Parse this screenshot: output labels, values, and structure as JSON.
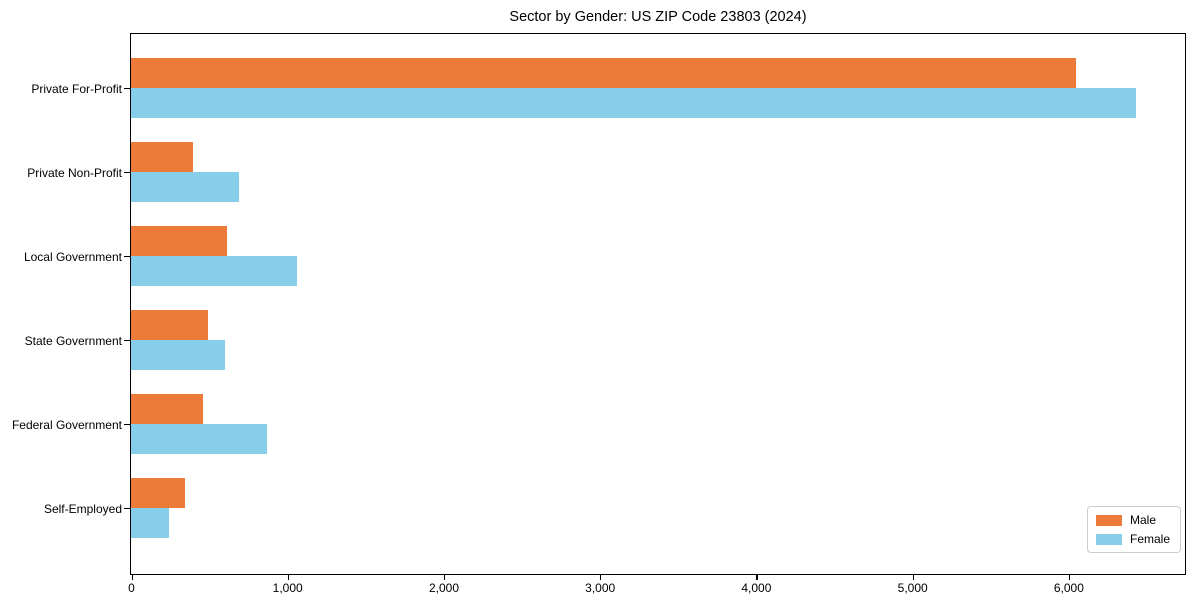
{
  "chart_data": {
    "type": "bar",
    "orientation": "horizontal",
    "title": "Sector by Gender: US ZIP Code 23803 (2024)",
    "categories": [
      "Private For-Profit",
      "Private Non-Profit",
      "Local Government",
      "State Government",
      "Federal Government",
      "Self-Employed"
    ],
    "series": [
      {
        "name": "Male",
        "color": "#EC7A39",
        "values": [
          6050,
          395,
          615,
          490,
          460,
          345
        ]
      },
      {
        "name": "Female",
        "color": "#87CEEB",
        "values": [
          6430,
          690,
          1060,
          600,
          870,
          240
        ]
      }
    ],
    "xlabel": "",
    "ylabel": "",
    "xlim": [
      0,
      6740
    ],
    "xticks": [
      0,
      1000,
      2000,
      3000,
      4000,
      5000,
      6000
    ],
    "xtick_labels": [
      "0",
      "1,000",
      "2,000",
      "3,000",
      "4,000",
      "5,000",
      "6,000"
    ],
    "grid": false,
    "legend_position": "lower right",
    "axis_color": "#000000",
    "background_color": "#ffffff"
  }
}
